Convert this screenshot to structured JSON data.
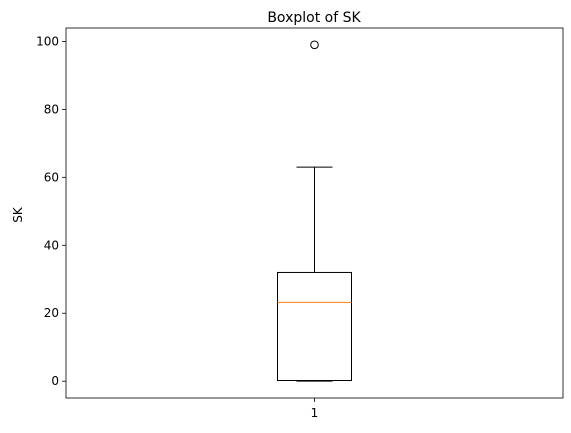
{
  "chart_data": {
    "type": "box",
    "title": "Boxplot of SK",
    "xlabel": "",
    "ylabel": "SK",
    "categories": [
      "1"
    ],
    "ylim": [
      -4.95,
      103.95
    ],
    "yticks": [
      0,
      20,
      40,
      60,
      80,
      100
    ],
    "boxes": [
      {
        "category": "1",
        "whisker_low": 0,
        "q1": 0.2,
        "median": 23.2,
        "q3": 32,
        "whisker_high": 63,
        "outliers": [
          99
        ]
      }
    ],
    "grid": false,
    "colors": {
      "box": "#000000",
      "median": "#ff7f0e",
      "outlier": "#000000"
    }
  }
}
